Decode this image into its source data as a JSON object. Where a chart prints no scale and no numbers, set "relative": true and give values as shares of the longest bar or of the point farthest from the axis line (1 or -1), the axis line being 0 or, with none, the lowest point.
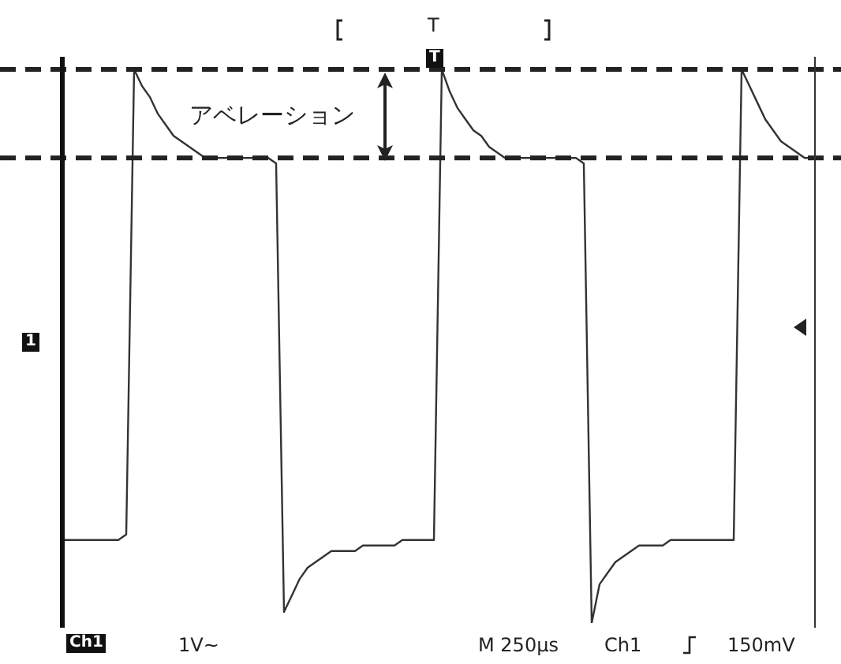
{
  "chart_data": {
    "type": "line",
    "relative": true,
    "marker": "none",
    "line_style": "solid",
    "legend": false,
    "categories": [
      null,
      null,
      null,
      null,
      null,
      null,
      null,
      null,
      null,
      null,
      null,
      null,
      null,
      null,
      null,
      null,
      null,
      null,
      null,
      null,
      null,
      null,
      null,
      null,
      null,
      null,
      null,
      null,
      null,
      null,
      null,
      null,
      null,
      null,
      null,
      null,
      null,
      null,
      null,
      null,
      null,
      null,
      null,
      null,
      null,
      null,
      null,
      null,
      null,
      null,
      null,
      null,
      null,
      null,
      null,
      null,
      null,
      null,
      null,
      null,
      null,
      null,
      null,
      null,
      null,
      null,
      null,
      null,
      null,
      null,
      null,
      null,
      null,
      null,
      null,
      null,
      null,
      null,
      null,
      null,
      null,
      null,
      null,
      null,
      null,
      null,
      null,
      null,
      null,
      null,
      null,
      null,
      null,
      null,
      null,
      null
    ],
    "series": [
      {
        "color": "#333333",
        "values": [
          0.15,
          0.15,
          0.15,
          0.15,
          0.15,
          0.15,
          0.15,
          0.15,
          0.16,
          1,
          0.97,
          0.95,
          0.92,
          0.9,
          0.88,
          0.87,
          0.86,
          0.85,
          0.84,
          0.84,
          0.84,
          0.84,
          0.84,
          0.84,
          0.84,
          0.84,
          0.84,
          0.83,
          0.02,
          0.05,
          0.08,
          0.1,
          0.11,
          0.12,
          0.13,
          0.13,
          0.13,
          0.13,
          0.14,
          0.14,
          0.14,
          0.14,
          0.14,
          0.15,
          0.15,
          0.15,
          0.15,
          0.15,
          1,
          0.96,
          0.93,
          0.91,
          0.89,
          0.88,
          0.86,
          0.85,
          0.84,
          0.84,
          0.84,
          0.84,
          0.84,
          0.84,
          0.84,
          0.84,
          0.84,
          0.84,
          0.83,
          0,
          0.07,
          0.09,
          0.11,
          0.12,
          0.13,
          0.14,
          0.14,
          0.14,
          0.14,
          0.15,
          0.15,
          0.15,
          0.15,
          0.15,
          0.15,
          0.15,
          0.15,
          0.15,
          1,
          0.97,
          0.94,
          0.91,
          0.89,
          0.87,
          0.86,
          0.85,
          0.84,
          0.84
        ]
      }
    ],
    "ref_lines": [
      {
        "axis": "y",
        "value": 1,
        "line_style": "dashed",
        "color": "#222222"
      },
      {
        "axis": "y",
        "value": 0.84,
        "line_style": "dashed",
        "color": "#222222"
      }
    ],
    "annotations": [
      "アベレーション",
      "T",
      "T",
      "1",
      "Ch1",
      "1V~",
      "M 250μs",
      "Ch1",
      "150mV"
    ]
  }
}
